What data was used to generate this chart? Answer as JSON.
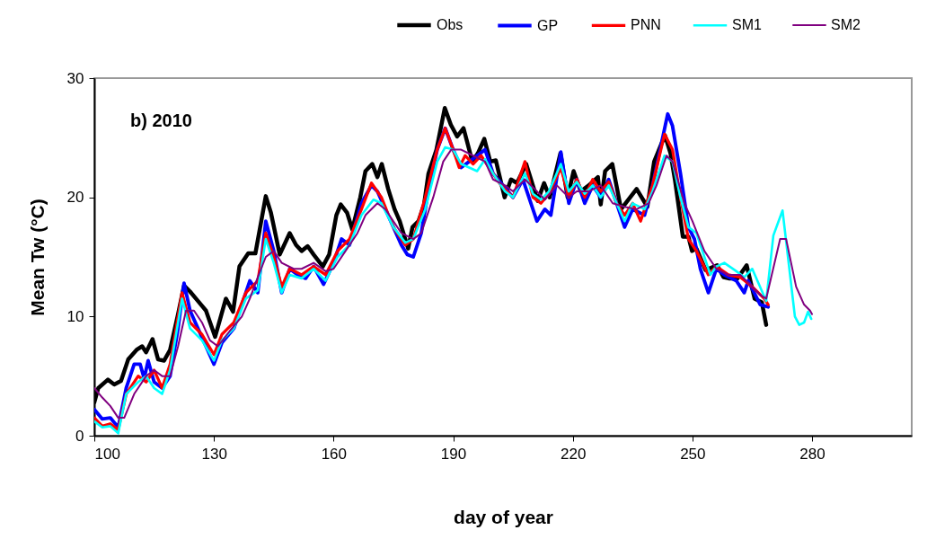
{
  "chart_data": {
    "type": "line",
    "xlabel": "day of year",
    "ylabel": "Mean Tw (°C)",
    "annotations": [
      "b) 2010"
    ],
    "xlim": [
      100,
      305
    ],
    "xticks": [
      100,
      130,
      160,
      190,
      220,
      250,
      280
    ],
    "ylim": [
      0,
      30
    ],
    "yticks": [
      0,
      10,
      20,
      30
    ],
    "grid": false,
    "legend": "top right",
    "line_style": "solid",
    "marker": "none",
    "series": [
      {
        "name": "Obs",
        "color": "#000000",
        "x": [
          100,
          101,
          103.4,
          105,
          106.7,
          108.5,
          110.6,
          112,
          113,
          114.6,
          116,
          117.5,
          119,
          121,
          122.5,
          124,
          126,
          128,
          130.3,
          133,
          134.8,
          136.4,
          138.6,
          140.4,
          143,
          144.3,
          146.5,
          149,
          150.6,
          152,
          153.5,
          155,
          157.3,
          158.9,
          160.7,
          161.8,
          163.4,
          164.7,
          166.7,
          168,
          169.7,
          171,
          172.1,
          173.7,
          175.3,
          176.6,
          178.7,
          179.8,
          181.3,
          182.7,
          183.8,
          185.8,
          187.9,
          189.4,
          191,
          192.6,
          194.8,
          196.2,
          197.8,
          199.3,
          200.7,
          202.9,
          204.5,
          206,
          208.3,
          211.2,
          212.8,
          214.2,
          216.9,
          218.7,
          220.2,
          222,
          224,
          226.3,
          227,
          228.1,
          229.9,
          232.1,
          236,
          238.7,
          240.4,
          243.1,
          244.5,
          245.6,
          247.6,
          249,
          249.9,
          251,
          253.3,
          256.2,
          257.8,
          259.1,
          261.3,
          263.6,
          265.6,
          267.4,
          268.5
        ],
        "values": [
          2.8,
          4.0,
          4.7,
          4.3,
          4.6,
          6.4,
          7.2,
          7.5,
          7.0,
          8.1,
          6.4,
          6.3,
          7.2,
          10.2,
          12.6,
          12.1,
          11.3,
          10.5,
          8.3,
          11.5,
          10.4,
          14.2,
          15.3,
          15.3,
          20.1,
          18.7,
          15.2,
          17.0,
          16.0,
          15.5,
          15.9,
          15.2,
          14.2,
          15.2,
          18.5,
          19.4,
          18.7,
          17.3,
          20.0,
          22.2,
          22.8,
          21.7,
          22.8,
          20.7,
          19.0,
          18.0,
          15.7,
          17.5,
          18.0,
          19.4,
          22.0,
          24.0,
          27.5,
          26.1,
          25.1,
          25.8,
          23.0,
          23.7,
          24.9,
          23.0,
          23.1,
          20.0,
          21.5,
          21.2,
          22.8,
          19.7,
          21.2,
          20.0,
          23.7,
          20.0,
          22.2,
          20.5,
          21.0,
          21.7,
          19.4,
          22.2,
          22.8,
          19.0,
          20.7,
          19.2,
          23.0,
          25.2,
          23.7,
          21.5,
          16.7,
          16.7,
          15.5,
          15.7,
          13.9,
          14.3,
          13.3,
          13.2,
          13.2,
          14.3,
          11.5,
          11.2,
          9.3
        ]
      },
      {
        "name": "GP",
        "color": "#0000ff",
        "x": [
          100,
          102,
          104,
          106,
          108,
          110,
          111.5,
          112.5,
          113.5,
          115,
          117,
          119,
          121,
          122.5,
          124,
          126,
          128,
          130,
          132,
          135,
          137.5,
          139,
          141,
          143,
          145,
          147,
          149,
          151,
          153,
          155,
          157.5,
          160,
          162,
          164,
          167,
          169.5,
          171,
          173,
          175,
          177,
          178.5,
          180,
          182,
          184,
          186,
          188,
          190,
          192,
          194,
          196,
          198,
          200,
          203,
          205,
          207.5,
          209.5,
          211,
          213,
          214.5,
          217,
          219,
          221,
          223,
          225,
          227,
          229,
          231,
          233,
          235,
          238,
          240,
          243.8,
          245,
          247,
          249,
          250.5,
          252,
          254,
          256,
          258,
          261,
          263,
          264,
          267,
          269
        ],
        "values": [
          2.2,
          1.4,
          1.5,
          0.7,
          4.0,
          6.0,
          6.0,
          4.8,
          6.3,
          4.5,
          4.0,
          5.0,
          9.0,
          12.8,
          10.5,
          9.0,
          7.5,
          6.0,
          7.8,
          9.0,
          11.5,
          13.0,
          12.0,
          18.0,
          15.5,
          12.0,
          14.0,
          13.5,
          13.2,
          14.2,
          12.7,
          14.5,
          16.5,
          16.0,
          19.5,
          21.0,
          20.5,
          19.0,
          17.5,
          16.0,
          15.2,
          15.0,
          17.0,
          21.0,
          24.0,
          25.8,
          24.0,
          22.5,
          23.0,
          23.5,
          24.0,
          22.0,
          20.8,
          20.0,
          21.5,
          19.5,
          18.0,
          19.0,
          18.5,
          23.8,
          19.5,
          21.5,
          19.5,
          21.0,
          20.0,
          21.5,
          19.5,
          17.5,
          19.0,
          18.5,
          21.0,
          27.0,
          26.0,
          22.0,
          17.5,
          16.5,
          14.0,
          12.0,
          14.0,
          13.5,
          13.0,
          12.0,
          13.0,
          11.0,
          10.8
        ]
      },
      {
        "name": "PNN",
        "color": "#ff0000",
        "x": [
          100,
          102,
          104,
          106,
          108,
          111,
          113,
          115,
          117,
          119,
          122,
          124,
          127,
          130,
          132,
          135,
          138,
          141,
          143,
          145,
          147,
          149,
          152,
          155,
          158,
          161,
          164,
          167,
          169.5,
          172,
          175,
          178,
          180,
          183,
          186,
          188,
          190,
          191.5,
          193,
          195,
          197,
          199,
          202,
          205,
          208,
          210,
          212,
          214,
          217,
          219,
          221,
          223,
          225,
          227,
          229,
          231,
          233,
          235,
          237,
          240,
          243,
          245,
          247,
          249,
          251,
          254,
          256,
          259,
          262,
          265,
          268,
          269
        ],
        "values": [
          1.5,
          0.8,
          1.0,
          0.5,
          3.5,
          5.0,
          4.5,
          5.5,
          4.0,
          6.0,
          12.0,
          9.5,
          8.5,
          6.8,
          8.5,
          9.5,
          12.0,
          13.0,
          17.0,
          15.0,
          12.5,
          14.0,
          13.5,
          14.2,
          13.5,
          15.5,
          16.5,
          19.0,
          21.2,
          20.0,
          17.5,
          16.0,
          16.5,
          20.0,
          24.0,
          25.8,
          24.0,
          22.5,
          23.5,
          22.8,
          23.5,
          22.5,
          21.0,
          20.0,
          23.0,
          20.0,
          19.5,
          20.3,
          22.5,
          20.0,
          21.5,
          20.0,
          21.5,
          20.5,
          21.3,
          19.5,
          18.5,
          19.5,
          18.0,
          21.0,
          25.3,
          24.0,
          20.0,
          16.5,
          15.5,
          13.5,
          14.2,
          13.5,
          13.3,
          12.5,
          11.5,
          11.0
        ]
      },
      {
        "name": "SM1",
        "color": "#00ffff",
        "x": [
          100,
          102,
          104,
          106,
          108,
          111,
          113,
          115,
          117,
          119,
          122,
          124,
          127,
          130,
          132,
          135,
          138,
          141,
          143,
          145,
          147,
          149,
          152,
          155,
          158,
          161,
          164,
          167,
          170,
          172,
          175,
          178,
          180,
          183,
          186,
          188,
          190,
          192,
          194,
          196,
          198,
          200,
          203,
          205,
          208,
          210,
          212,
          214,
          217,
          219,
          221,
          223,
          225,
          227,
          229,
          231,
          233,
          235,
          238,
          240,
          243,
          245,
          247,
          249,
          251,
          253,
          254.5,
          256,
          258,
          261,
          263,
          265,
          268.5,
          270.3,
          272.6,
          275.7,
          276.8,
          278,
          279,
          279.8
        ],
        "values": [
          1.2,
          0.7,
          0.8,
          0.2,
          3.5,
          4.5,
          5.0,
          4.0,
          3.5,
          5.5,
          11.5,
          9.0,
          8.0,
          6.3,
          8.0,
          9.0,
          11.5,
          12.2,
          16.5,
          14.5,
          12.0,
          13.5,
          13.2,
          14.0,
          13.0,
          15.0,
          16.0,
          18.5,
          19.8,
          19.5,
          17.5,
          16.2,
          16.5,
          19.0,
          23.0,
          24.2,
          24.0,
          22.8,
          22.5,
          22.2,
          23.2,
          22.0,
          20.5,
          20.0,
          22.0,
          20.3,
          19.8,
          20.5,
          22.8,
          20.5,
          21.3,
          20.3,
          21.0,
          20.0,
          21.0,
          19.5,
          18.0,
          19.5,
          19.0,
          20.5,
          23.5,
          23.0,
          20.0,
          17.5,
          17.0,
          15.0,
          13.5,
          14.2,
          14.5,
          13.8,
          13.3,
          14.0,
          11.3,
          16.8,
          18.9,
          10.0,
          9.3,
          9.5,
          10.4,
          9.8
        ]
      },
      {
        "name": "SM2",
        "color": "#800080",
        "x": [
          100,
          102,
          104,
          106,
          107.5,
          110,
          113,
          115,
          117,
          119,
          121,
          123,
          125,
          127,
          129,
          131,
          134,
          137,
          139,
          141,
          143,
          145,
          147,
          150,
          152,
          155,
          158,
          160,
          163,
          166,
          168,
          171,
          173,
          175,
          177,
          180,
          182,
          185,
          187.5,
          189.5,
          192,
          195,
          198,
          200,
          203,
          205,
          208,
          211,
          213,
          216,
          219,
          221,
          224,
          227,
          230,
          233,
          236,
          239,
          241,
          243.5,
          245,
          248,
          250,
          253,
          256,
          259,
          262,
          265,
          267,
          268.5,
          272,
          273.5,
          276,
          278,
          279.5,
          280
        ],
        "values": [
          4.0,
          3.2,
          2.5,
          1.5,
          1.5,
          3.5,
          5.0,
          5.5,
          5.0,
          5.0,
          7.5,
          10.5,
          10.5,
          9.5,
          8.0,
          7.5,
          8.8,
          10.0,
          11.5,
          13.3,
          15.0,
          15.5,
          14.5,
          14.0,
          14.0,
          14.5,
          13.8,
          14.0,
          15.5,
          17.0,
          18.5,
          19.5,
          19.0,
          18.0,
          17.0,
          16.5,
          17.0,
          20.0,
          23.0,
          24.0,
          24.0,
          23.5,
          23.0,
          21.5,
          21.0,
          20.5,
          21.5,
          20.5,
          19.8,
          21.0,
          20.0,
          20.5,
          20.5,
          21.0,
          19.5,
          19.2,
          19.0,
          19.5,
          21.0,
          23.5,
          23.0,
          19.5,
          18.0,
          15.5,
          14.0,
          13.5,
          13.5,
          12.5,
          11.8,
          11.5,
          16.5,
          16.5,
          12.5,
          11.0,
          10.5,
          10.2
        ]
      }
    ]
  }
}
